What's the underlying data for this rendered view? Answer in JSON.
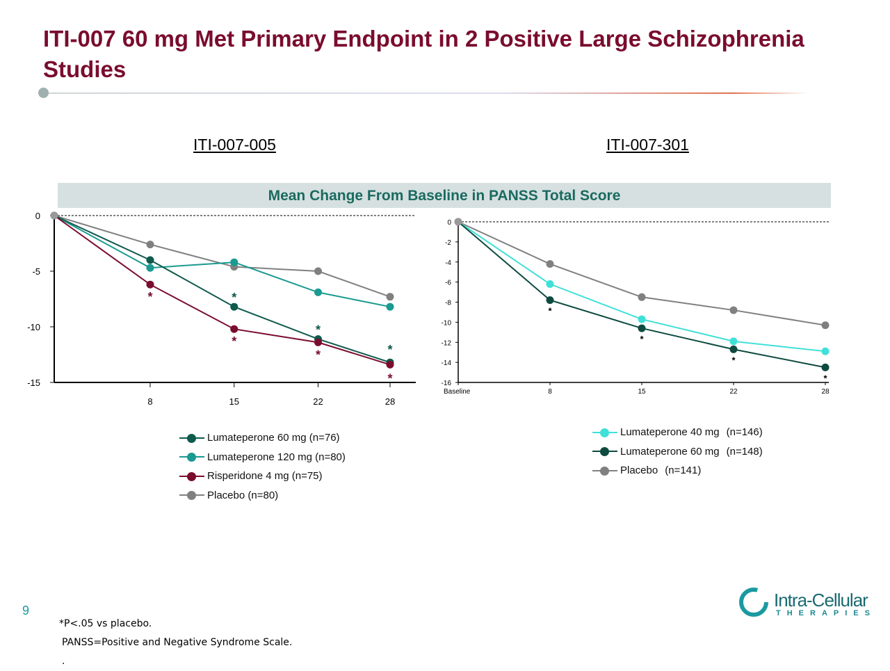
{
  "title": "ITI-007 60 mg Met Primary Endpoint in 2 Positive Large Schizophrenia Studies",
  "band": "Mean Change From Baseline in PANSS Total Score",
  "page_number": "9",
  "footnotes": [
    "*P<.05 vs placebo.",
    "PANSS=Positive and Negative Syndrome Scale.",
    "."
  ],
  "logo": {
    "name": "Intra-Cellular",
    "sub": "THERAPIES"
  },
  "chart_data": [
    {
      "type": "line",
      "title": "ITI-007-005",
      "x": [
        0,
        8,
        15,
        22,
        28
      ],
      "xticks": [
        "8",
        "15",
        "22",
        "28"
      ],
      "ylim": [
        -15,
        0
      ],
      "yticks": [
        "0",
        "-5",
        "-10",
        "-15"
      ],
      "legend_placement": "bottom",
      "series": [
        {
          "name": "Lumateperone 60 mg (n=76)",
          "color": "#0e5a4c",
          "values": [
            0,
            -4.0,
            -8.2,
            -11.1,
            -13.2
          ],
          "sig": [
            false,
            false,
            true,
            true,
            true
          ]
        },
        {
          "name": "Lumateperone 120 mg (n=80)",
          "color": "#1a9a90",
          "values": [
            0,
            -4.7,
            -4.2,
            -6.9,
            -8.2
          ],
          "sig": [
            false,
            false,
            false,
            false,
            false
          ]
        },
        {
          "name": "Risperidone 4 mg (n=75)",
          "color": "#7a0c2e",
          "values": [
            0,
            -6.2,
            -10.2,
            -11.4,
            -13.4
          ],
          "sig": [
            false,
            true,
            true,
            true,
            true
          ]
        },
        {
          "name": "Placebo (n=80)",
          "color": "#808080",
          "values": [
            0,
            -2.6,
            -4.6,
            -5.0,
            -7.3
          ],
          "sig": [
            false,
            false,
            false,
            false,
            false
          ]
        }
      ]
    },
    {
      "type": "line",
      "title": "ITI-007-301",
      "x": [
        "Baseline",
        "8",
        "15",
        "22",
        "28"
      ],
      "ylim": [
        -16,
        0
      ],
      "yticks": [
        "0",
        "-2",
        "-4",
        "-6",
        "-8",
        "-10",
        "-12",
        "-14",
        "-16"
      ],
      "legend_placement": "bottom",
      "series": [
        {
          "name": "Lumateperone 40 mg",
          "n": "(n=146)",
          "color": "#40e0d8",
          "values": [
            0,
            -6.2,
            -9.7,
            -11.9,
            -12.9
          ],
          "sig": [
            false,
            false,
            false,
            false,
            false
          ]
        },
        {
          "name": "Lumateperone 60 mg",
          "n": "(n=148)",
          "color": "#0e4a40",
          "values": [
            0,
            -7.8,
            -10.6,
            -12.7,
            -14.5
          ],
          "sig": [
            false,
            true,
            true,
            true,
            true
          ]
        },
        {
          "name": "Placebo",
          "n": "(n=141)",
          "color": "#808080",
          "values": [
            0,
            -4.2,
            -7.5,
            -8.8,
            -10.3
          ],
          "sig": [
            false,
            false,
            false,
            false,
            false
          ]
        }
      ]
    }
  ]
}
